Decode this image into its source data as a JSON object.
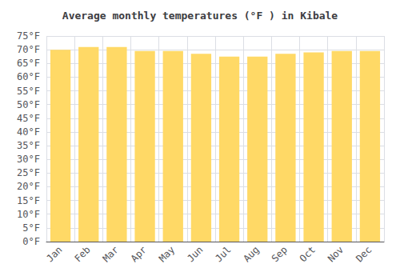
{
  "chart_data": {
    "type": "bar",
    "title": "Average monthly temperatures (°F ) in Kibale",
    "categories": [
      "Jan",
      "Feb",
      "Mar",
      "Apr",
      "May",
      "Jun",
      "Jul",
      "Aug",
      "Sep",
      "Oct",
      "Nov",
      "Dec"
    ],
    "values": [
      70.0,
      71.0,
      71.0,
      69.5,
      69.5,
      68.5,
      67.5,
      67.5,
      68.5,
      69.0,
      69.5,
      69.5
    ],
    "color": "#FFD966",
    "ylim": [
      0,
      75
    ],
    "yticks": [
      {
        "value": 0,
        "label": "0°F"
      },
      {
        "value": 5,
        "label": "5°F"
      },
      {
        "value": 10,
        "label": "10°F"
      },
      {
        "value": 15,
        "label": "15°F"
      },
      {
        "value": 20,
        "label": "20°F"
      },
      {
        "value": 25,
        "label": "25°F"
      },
      {
        "value": 30,
        "label": "30°F"
      },
      {
        "value": 35,
        "label": "35°F"
      },
      {
        "value": 40,
        "label": "40°F"
      },
      {
        "value": 45,
        "label": "45°F"
      },
      {
        "value": 50,
        "label": "50°F"
      },
      {
        "value": 55,
        "label": "55°F"
      },
      {
        "value": 60,
        "label": "60°F"
      },
      {
        "value": 65,
        "label": "65°F"
      },
      {
        "value": 70,
        "label": "70°F"
      },
      {
        "value": 75,
        "label": "75°F"
      }
    ],
    "grid": true
  }
}
